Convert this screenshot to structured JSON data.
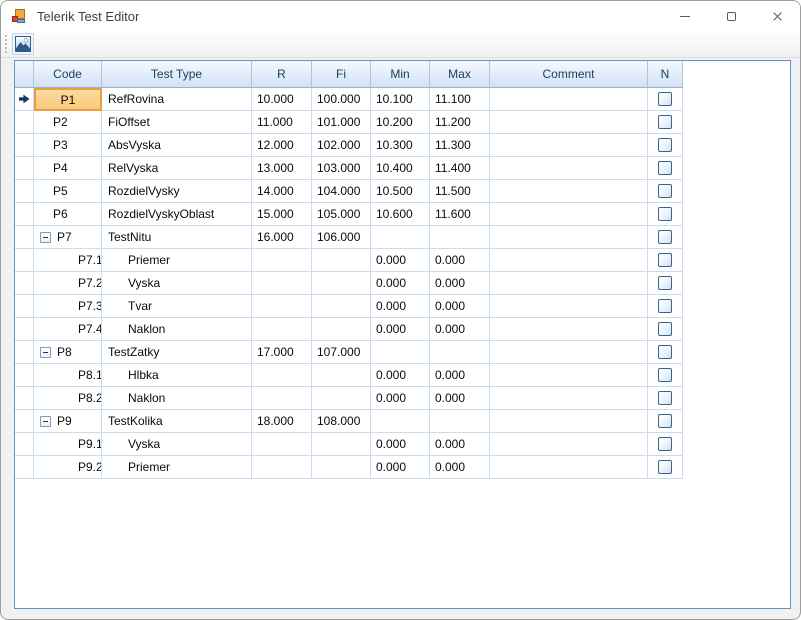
{
  "window": {
    "title": "Telerik Test Editor",
    "icons": {
      "app": "winforms-form-icon",
      "minimize": "minimize-icon",
      "maximize": "maximize-icon",
      "close": "close-icon"
    }
  },
  "toolbar": {
    "buttons": [
      {
        "name": "image-button",
        "icon": "picture-image-icon"
      }
    ]
  },
  "grid": {
    "columns": [
      "",
      "Code",
      "Test Type",
      "R",
      "Fi",
      "Min",
      "Max",
      "Comment",
      "N"
    ],
    "colors": {
      "header_top": "#F4F9FE",
      "header_bottom": "#D2E2F5",
      "gridline": "#CADCEF",
      "grid_border": "#6591C6",
      "selected_cell_fill": "#FBD091",
      "selected_cell_border": "#E7A03C"
    },
    "rows": [
      {
        "code": "P1",
        "type": "RefRovina",
        "r": "10.000",
        "fi": "100.000",
        "min": "10.100",
        "max": "11.100",
        "comment": "",
        "checked": false,
        "level": 0,
        "expandable": false,
        "current": true,
        "selected": true
      },
      {
        "code": "P2",
        "type": "FiOffset",
        "r": "11.000",
        "fi": "101.000",
        "min": "10.200",
        "max": "11.200",
        "comment": "",
        "checked": false,
        "level": 0,
        "expandable": false,
        "current": false,
        "selected": false
      },
      {
        "code": "P3",
        "type": "AbsVyska",
        "r": "12.000",
        "fi": "102.000",
        "min": "10.300",
        "max": "11.300",
        "comment": "",
        "checked": false,
        "level": 0,
        "expandable": false,
        "current": false,
        "selected": false
      },
      {
        "code": "P4",
        "type": "RelVyska",
        "r": "13.000",
        "fi": "103.000",
        "min": "10.400",
        "max": "11.400",
        "comment": "",
        "checked": false,
        "level": 0,
        "expandable": false,
        "current": false,
        "selected": false
      },
      {
        "code": "P5",
        "type": "RozdielVysky",
        "r": "14.000",
        "fi": "104.000",
        "min": "10.500",
        "max": "11.500",
        "comment": "",
        "checked": false,
        "level": 0,
        "expandable": false,
        "current": false,
        "selected": false
      },
      {
        "code": "P6",
        "type": "RozdielVyskyOblast",
        "r": "15.000",
        "fi": "105.000",
        "min": "10.600",
        "max": "11.600",
        "comment": "",
        "checked": false,
        "level": 0,
        "expandable": false,
        "current": false,
        "selected": false
      },
      {
        "code": "P7",
        "type": "TestNitu",
        "r": "16.000",
        "fi": "106.000",
        "min": "",
        "max": "",
        "comment": "",
        "checked": false,
        "level": 0,
        "expandable": true,
        "current": false,
        "selected": false
      },
      {
        "code": "P7.1",
        "type": "Priemer",
        "r": "",
        "fi": "",
        "min": "0.000",
        "max": "0.000",
        "comment": "",
        "checked": false,
        "level": 1,
        "expandable": false,
        "current": false,
        "selected": false
      },
      {
        "code": "P7.2",
        "type": "Vyska",
        "r": "",
        "fi": "",
        "min": "0.000",
        "max": "0.000",
        "comment": "",
        "checked": false,
        "level": 1,
        "expandable": false,
        "current": false,
        "selected": false
      },
      {
        "code": "P7.3",
        "type": "Tvar",
        "r": "",
        "fi": "",
        "min": "0.000",
        "max": "0.000",
        "comment": "",
        "checked": false,
        "level": 1,
        "expandable": false,
        "current": false,
        "selected": false
      },
      {
        "code": "P7.4",
        "type": "Naklon",
        "r": "",
        "fi": "",
        "min": "0.000",
        "max": "0.000",
        "comment": "",
        "checked": false,
        "level": 1,
        "expandable": false,
        "current": false,
        "selected": false
      },
      {
        "code": "P8",
        "type": "TestZatky",
        "r": "17.000",
        "fi": "107.000",
        "min": "",
        "max": "",
        "comment": "",
        "checked": false,
        "level": 0,
        "expandable": true,
        "current": false,
        "selected": false
      },
      {
        "code": "P8.1",
        "type": "Hlbka",
        "r": "",
        "fi": "",
        "min": "0.000",
        "max": "0.000",
        "comment": "",
        "checked": false,
        "level": 1,
        "expandable": false,
        "current": false,
        "selected": false
      },
      {
        "code": "P8.2",
        "type": "Naklon",
        "r": "",
        "fi": "",
        "min": "0.000",
        "max": "0.000",
        "comment": "",
        "checked": false,
        "level": 1,
        "expandable": false,
        "current": false,
        "selected": false
      },
      {
        "code": "P9",
        "type": "TestKolika",
        "r": "18.000",
        "fi": "108.000",
        "min": "",
        "max": "",
        "comment": "",
        "checked": false,
        "level": 0,
        "expandable": true,
        "current": false,
        "selected": false
      },
      {
        "code": "P9.1",
        "type": "Vyska",
        "r": "",
        "fi": "",
        "min": "0.000",
        "max": "0.000",
        "comment": "",
        "checked": false,
        "level": 1,
        "expandable": false,
        "current": false,
        "selected": false
      },
      {
        "code": "P9.2",
        "type": "Priemer",
        "r": "",
        "fi": "",
        "min": "0.000",
        "max": "0.000",
        "comment": "",
        "checked": false,
        "level": 1,
        "expandable": false,
        "current": false,
        "selected": false
      }
    ]
  }
}
